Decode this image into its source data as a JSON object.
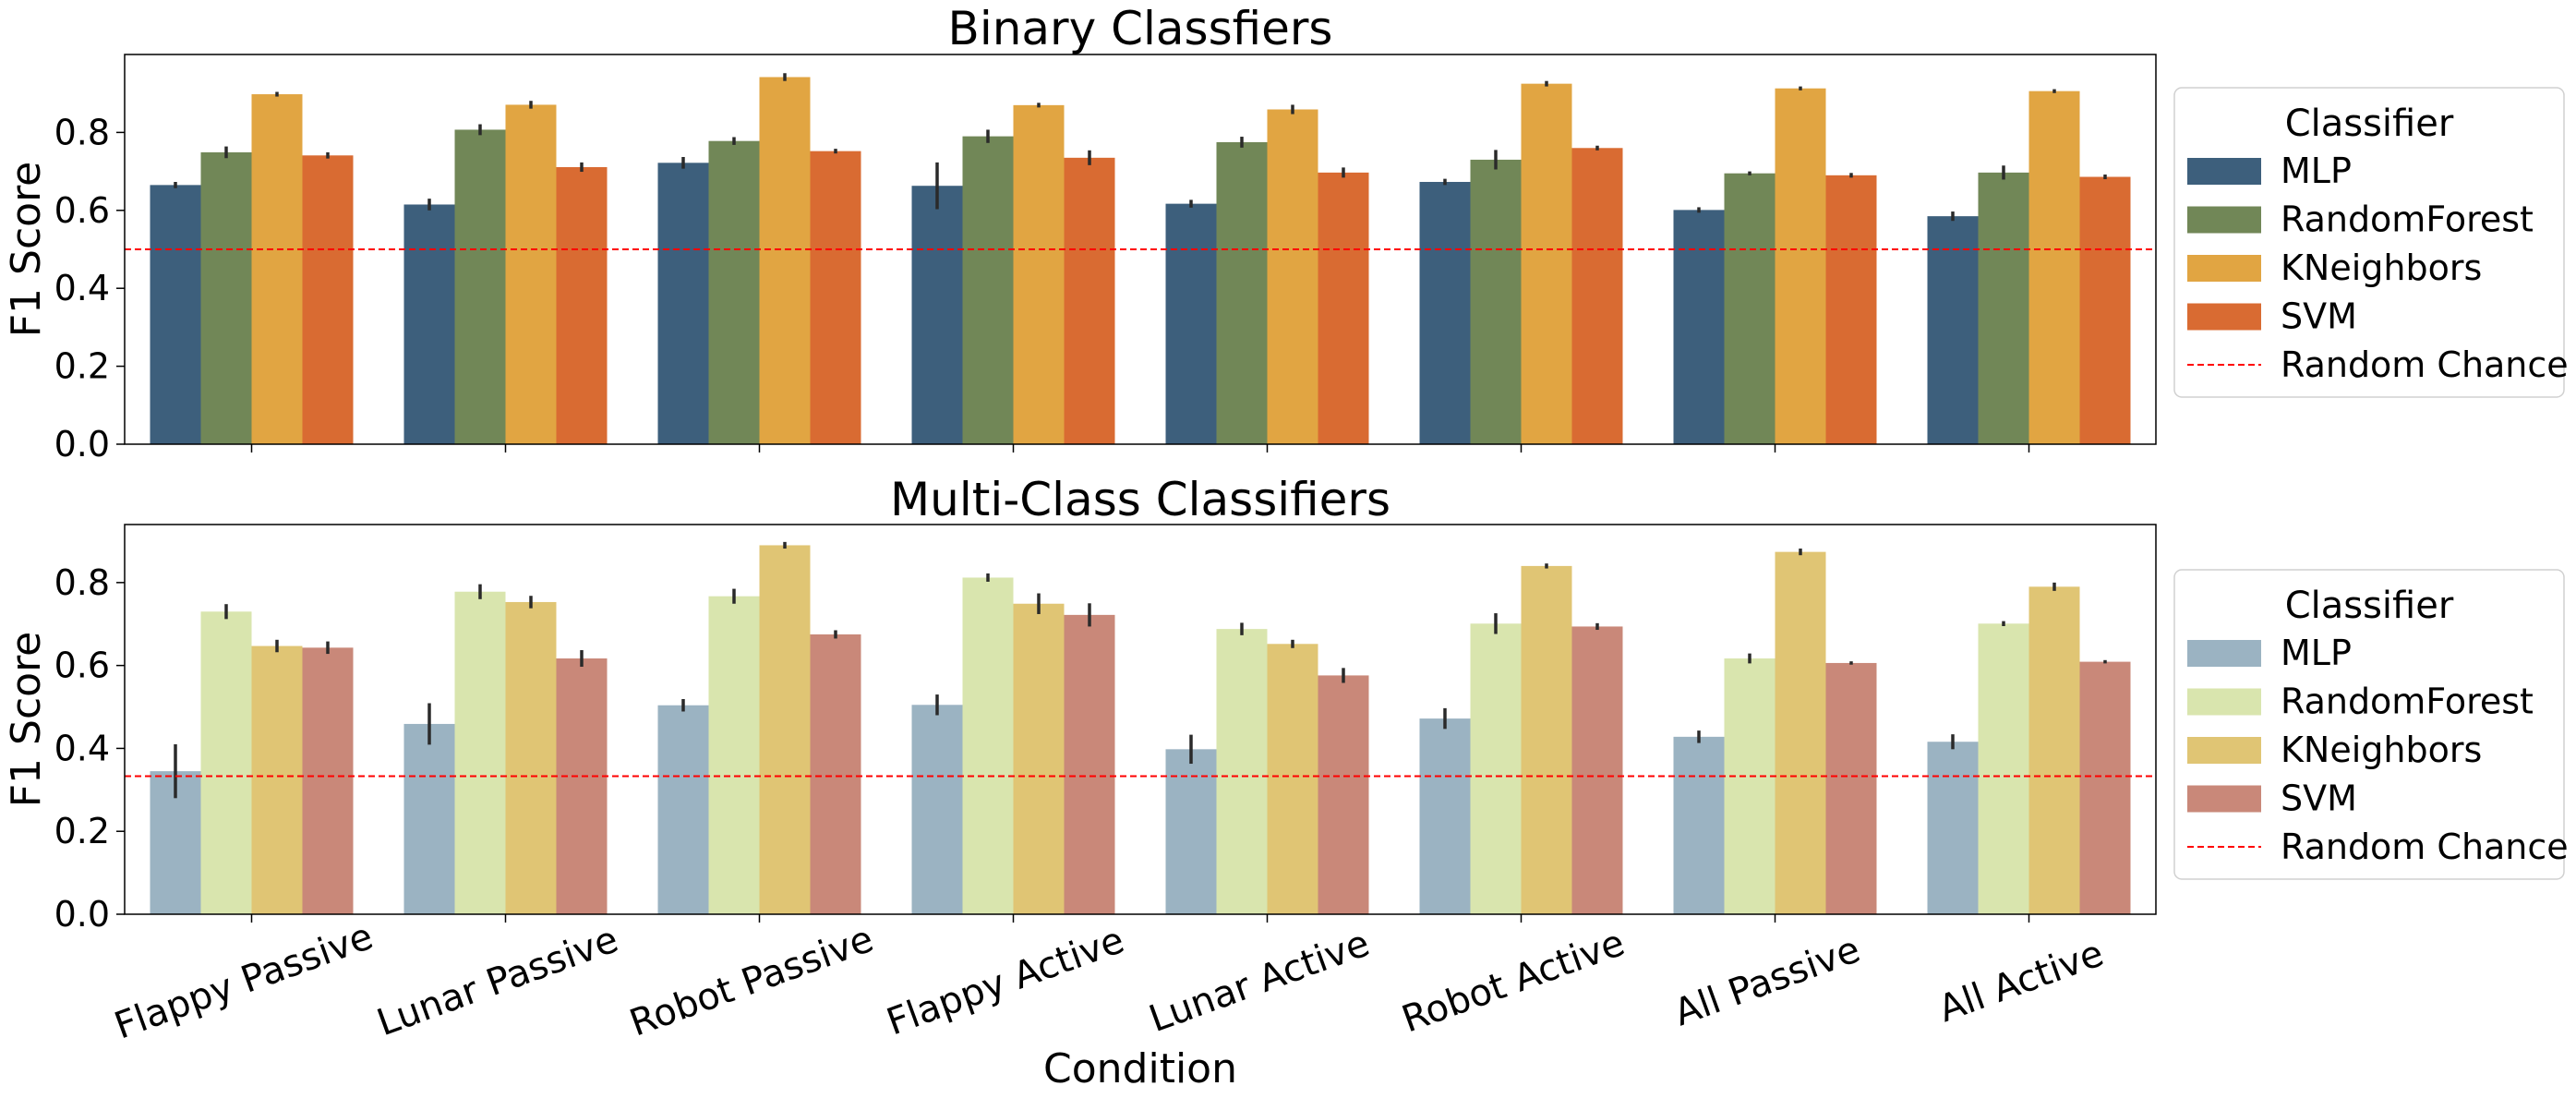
{
  "chart_data": [
    {
      "type": "bar",
      "title": "Binary Classfiers",
      "ylabel": "F1 Score",
      "xlabel": "",
      "ylim": [
        0,
        1.0
      ],
      "yticks": [
        0.0,
        0.2,
        0.4,
        0.6,
        0.8
      ],
      "ytick_labels": [
        "0.0",
        "0.2",
        "0.4",
        "0.6",
        "0.8"
      ],
      "grid": false,
      "categories": [
        "Flappy Passive",
        "Lunar Passive",
        "Robot Passive",
        "Flappy Active",
        "Lunar Active",
        "Robot Active",
        "All Passive",
        "All Active"
      ],
      "series": [
        {
          "name": "MLP",
          "color": "#3d5f7c",
          "values": [
            0.665,
            0.615,
            0.722,
            0.663,
            0.617,
            0.673,
            0.601,
            0.585
          ],
          "err": [
            0.008,
            0.015,
            0.015,
            0.06,
            0.01,
            0.008,
            0.007,
            0.012
          ]
        },
        {
          "name": "RandomForest",
          "color": "#718757",
          "values": [
            0.749,
            0.807,
            0.778,
            0.79,
            0.775,
            0.73,
            0.695,
            0.697
          ],
          "err": [
            0.015,
            0.014,
            0.01,
            0.017,
            0.014,
            0.025,
            0.005,
            0.018
          ]
        },
        {
          "name": "KNeighbors",
          "color": "#e1a542",
          "values": [
            0.898,
            0.871,
            0.942,
            0.87,
            0.859,
            0.925,
            0.913,
            0.906
          ],
          "err": [
            0.006,
            0.01,
            0.01,
            0.006,
            0.012,
            0.007,
            0.005,
            0.005
          ]
        },
        {
          "name": "SVM",
          "color": "#d96b32",
          "values": [
            0.741,
            0.711,
            0.752,
            0.735,
            0.697,
            0.76,
            0.69,
            0.686
          ],
          "err": [
            0.008,
            0.012,
            0.006,
            0.019,
            0.013,
            0.006,
            0.006,
            0.006
          ]
        }
      ],
      "reference_line": {
        "name": "Random Chance",
        "value": 0.5,
        "color": "#ff0000",
        "style": "dashed"
      },
      "legend": {
        "title": "Classifier",
        "placement": "outside-right"
      }
    },
    {
      "type": "bar",
      "title": "Multi-Class Classifiers",
      "ylabel": "F1 Score",
      "xlabel": "Condition",
      "ylim": [
        0,
        0.94
      ],
      "yticks": [
        0.0,
        0.2,
        0.4,
        0.6,
        0.8
      ],
      "ytick_labels": [
        "0.0",
        "0.2",
        "0.4",
        "0.6",
        "0.8"
      ],
      "grid": false,
      "categories": [
        "Flappy Passive",
        "Lunar Passive",
        "Robot Passive",
        "Flappy Active",
        "Lunar Active",
        "Robot Active",
        "All Passive",
        "All Active"
      ],
      "series": [
        {
          "name": "MLP",
          "color": "#9bb3c2",
          "values": [
            0.345,
            0.459,
            0.504,
            0.505,
            0.398,
            0.472,
            0.428,
            0.416
          ],
          "err": [
            0.065,
            0.05,
            0.015,
            0.025,
            0.035,
            0.025,
            0.015,
            0.018
          ]
        },
        {
          "name": "RandomForest",
          "color": "#d9e5ae",
          "values": [
            0.73,
            0.778,
            0.767,
            0.812,
            0.688,
            0.701,
            0.617,
            0.701
          ],
          "err": [
            0.018,
            0.018,
            0.018,
            0.01,
            0.015,
            0.025,
            0.012,
            0.006
          ]
        },
        {
          "name": "KNeighbors",
          "color": "#e0c574",
          "values": [
            0.647,
            0.753,
            0.89,
            0.749,
            0.652,
            0.84,
            0.874,
            0.79
          ],
          "err": [
            0.015,
            0.015,
            0.008,
            0.025,
            0.01,
            0.006,
            0.008,
            0.01
          ]
        },
        {
          "name": "SVM",
          "color": "#c98879",
          "values": [
            0.643,
            0.617,
            0.675,
            0.722,
            0.576,
            0.694,
            0.606,
            0.609
          ],
          "err": [
            0.015,
            0.02,
            0.01,
            0.028,
            0.018,
            0.008,
            0.004,
            0.004
          ]
        }
      ],
      "reference_line": {
        "name": "Random Chance",
        "value": 0.333,
        "color": "#ff0000",
        "style": "dashed"
      },
      "legend": {
        "title": "Classifier",
        "placement": "outside-right"
      }
    }
  ]
}
